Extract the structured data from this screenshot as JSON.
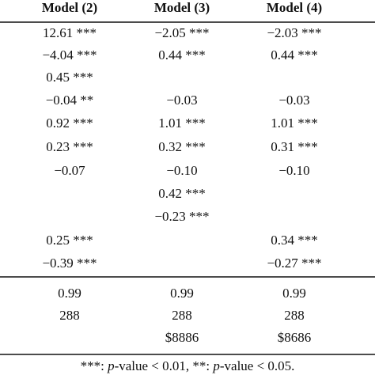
{
  "table": {
    "header": [
      "Model (2)",
      "Model (3)",
      "Model (4)"
    ],
    "rows": [
      [
        "12.61 ***",
        "−2.05 ***",
        "−2.03 ***"
      ],
      [
        "−4.04 ***",
        "0.44 ***",
        "0.44 ***"
      ],
      [
        "0.45 ***",
        null,
        null
      ],
      [
        "−0.04 **",
        "−0.03",
        "−0.03"
      ],
      [
        "0.92 ***",
        "1.01 ***",
        "1.01 ***"
      ],
      [
        "0.23 ***",
        "0.32 ***",
        "0.31 ***"
      ],
      [
        "−0.07",
        "−0.10",
        "−0.10"
      ],
      [
        null,
        "0.42 ***",
        null
      ],
      [
        null,
        "−0.23 ***",
        null
      ],
      [
        "0.25 ***",
        null,
        "0.34 ***"
      ],
      [
        "−0.39 ***",
        null,
        "−0.27 ***"
      ],
      [
        "0.99",
        "0.99",
        "0.99"
      ],
      [
        "288",
        "288",
        "288"
      ],
      [
        null,
        "$8886",
        "$8686"
      ]
    ],
    "footnote": [
      "***: ",
      "p",
      "-value < 0.01, **: ",
      "p",
      "-value < 0.05."
    ]
  }
}
